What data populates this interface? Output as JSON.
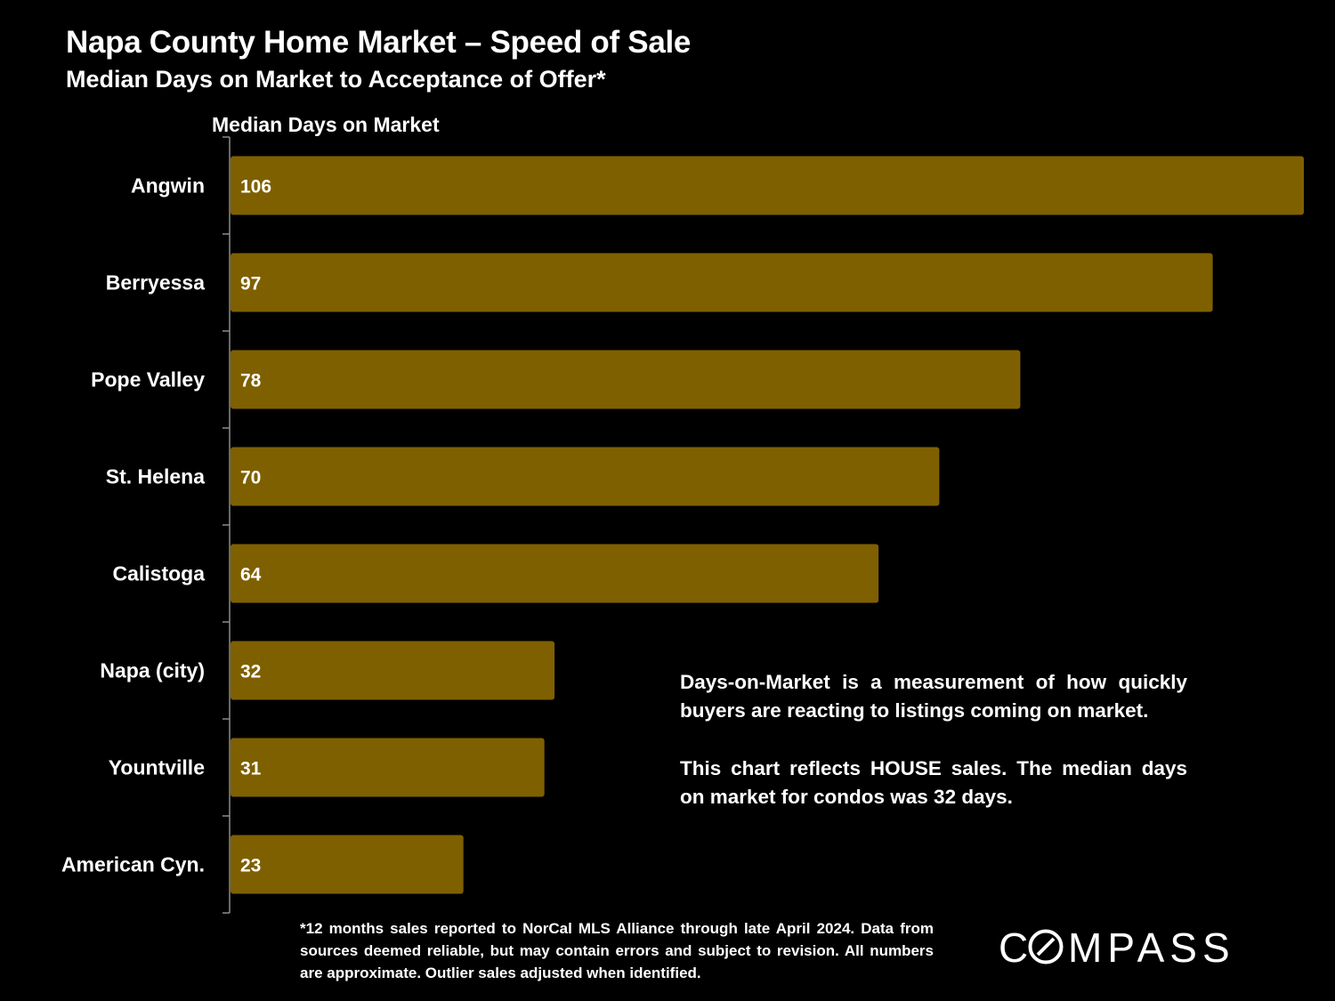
{
  "title": "Napa County Home Market – Speed of Sale",
  "subtitle": "Median Days on Market to Acceptance of Offer*",
  "note_1": "Days-on-Market is a measurement of how quickly buyers are reacting to listings coming on market.",
  "note_2": "This chart reflects HOUSE sales. The median days on market for condos was 32 days.",
  "footnote": "*12 months sales reported to NorCal MLS Alliance through late April 2024. Data from sources deemed reliable, but may contain errors and subject to revision. All numbers are approximate. Outlier sales adjusted when identified.",
  "logo": {
    "text": "COMPASS",
    "icon": "compass-o-icon"
  },
  "colors": {
    "background": "#000000",
    "bar": "#7f6000",
    "text": "#ffffff",
    "axis": "#8c8c8c"
  },
  "chart_data": {
    "type": "bar",
    "orientation": "horizontal",
    "title": "Napa County Home Market – Speed of Sale",
    "subtitle": "Median Days on Market to Acceptance of Offer*",
    "xlabel": "Median Days on Market",
    "ylabel": "",
    "categories": [
      "Angwin",
      "Berryessa",
      "Pope Valley",
      "St. Helena",
      "Calistoga",
      "Napa (city)",
      "Yountville",
      "American Cyn."
    ],
    "values": [
      106,
      97,
      78,
      70,
      64,
      32,
      31,
      23
    ],
    "data_labels": [
      "106",
      "97",
      "78",
      "70",
      "64",
      "32",
      "31",
      "23"
    ],
    "xlim": [
      0,
      106
    ],
    "grid": false,
    "legend": "none"
  }
}
